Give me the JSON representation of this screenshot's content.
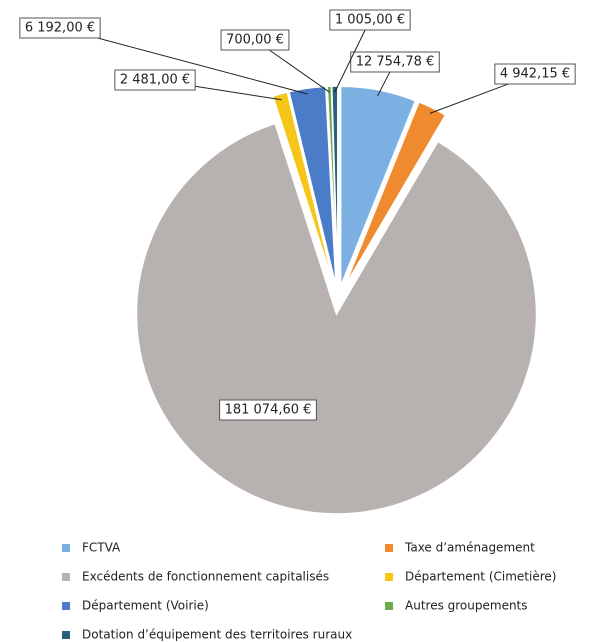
{
  "chart_data": {
    "type": "pie",
    "categories": [
      "FCTVA",
      "Taxe d’aménagement",
      "Excédents de fonctionnement capitalisés",
      "Département (Cimetière)",
      "Département (Voirie)",
      "Autres groupements",
      "Dotation d’équipement des territoires ruraux"
    ],
    "values": [
      12754.78,
      4942.15,
      181074.6,
      2481.0,
      6192.0,
      700.0,
      1005.0
    ],
    "value_labels": [
      "12 754,78 €",
      "4 942,15 €",
      "181 074,60 €",
      "2 481,00 €",
      "6 192,00 €",
      "700,00 €",
      "1 005,00 €"
    ],
    "colors": [
      "#7cb0e2",
      "#ef8a2e",
      "#b7b2af",
      "#f5c518",
      "#4a7cc7",
      "#6aaa4a",
      "#2a5f80"
    ]
  }
}
